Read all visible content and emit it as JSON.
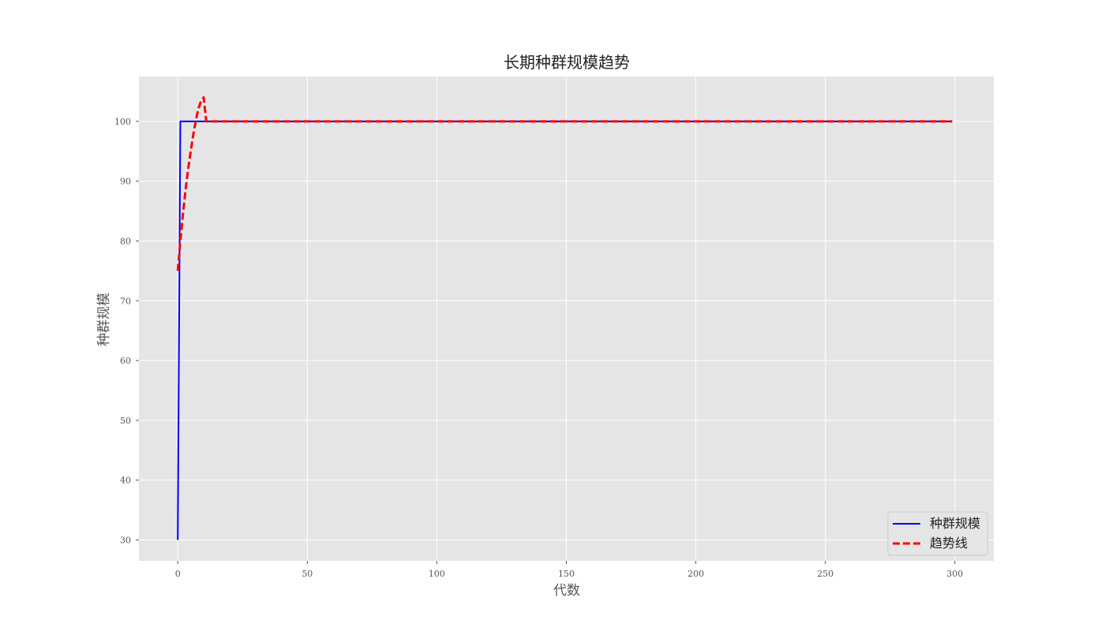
{
  "chart_data": {
    "type": "line",
    "title": "长期种群规模趋势",
    "xlabel": "代数",
    "ylabel": "种群规模",
    "xlim": [
      -15,
      315
    ],
    "ylim": [
      26.5,
      107.5
    ],
    "xticks": [
      0,
      50,
      100,
      150,
      200,
      250,
      300
    ],
    "yticks": [
      30,
      40,
      50,
      60,
      70,
      80,
      90,
      100
    ],
    "grid": true,
    "legend_position": "lower right",
    "series": [
      {
        "name": "种群规模",
        "color": "#0000ff",
        "style": "solid",
        "x": [
          0,
          1,
          299
        ],
        "y": [
          30,
          100,
          100
        ]
      },
      {
        "name": "趋势线",
        "color": "#ff0000",
        "style": "dashed",
        "x": [
          0,
          1,
          2,
          3,
          4,
          5,
          6,
          7,
          8,
          9,
          10,
          11,
          299
        ],
        "y": [
          75,
          80,
          84.5,
          88.5,
          92,
          95,
          97.8,
          100.2,
          102.2,
          103.4,
          104,
          100,
          100
        ]
      }
    ]
  },
  "colors": {
    "plot_background": "#e5e5e5",
    "grid": "#ffffff"
  }
}
